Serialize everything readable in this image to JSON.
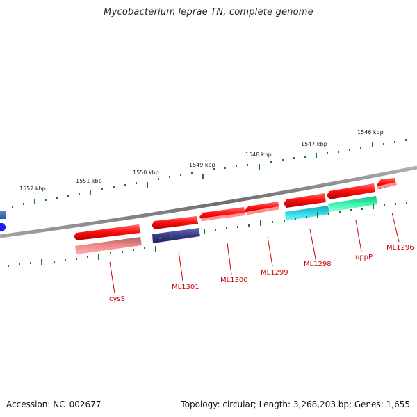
{
  "title": "Mycobacterium leprae TN, complete genome",
  "footer": {
    "accession": "Accession: NC_002677",
    "stats": "Topology: circular; Length: 3,268,203 bp; Genes: 1,655"
  },
  "ruler_labels": [
    "1546 kbp",
    "1547 kbp",
    "1548 kbp",
    "1549 kbp",
    "1550 kbp",
    "1551 kbp",
    "1552 kbp"
  ],
  "gene_labels": [
    "ML1296",
    "uppP",
    "ML1298",
    "ML1299",
    "ML1300",
    "ML1301",
    "cysS"
  ],
  "colors": {
    "backbone": "#8a8a8a",
    "tick": "#1f7a1f",
    "gene_forward": "#ff1a1a",
    "gene_reverse": "#ff1a1a",
    "cys_feature": "#f07d7d",
    "ml1301_feature": "#3d3a8a",
    "ml1298_feature": "#28c8d8",
    "uppP_feature": "#2ef0a8",
    "blue_feature": "#1a1aff",
    "label": "#cc0000"
  }
}
